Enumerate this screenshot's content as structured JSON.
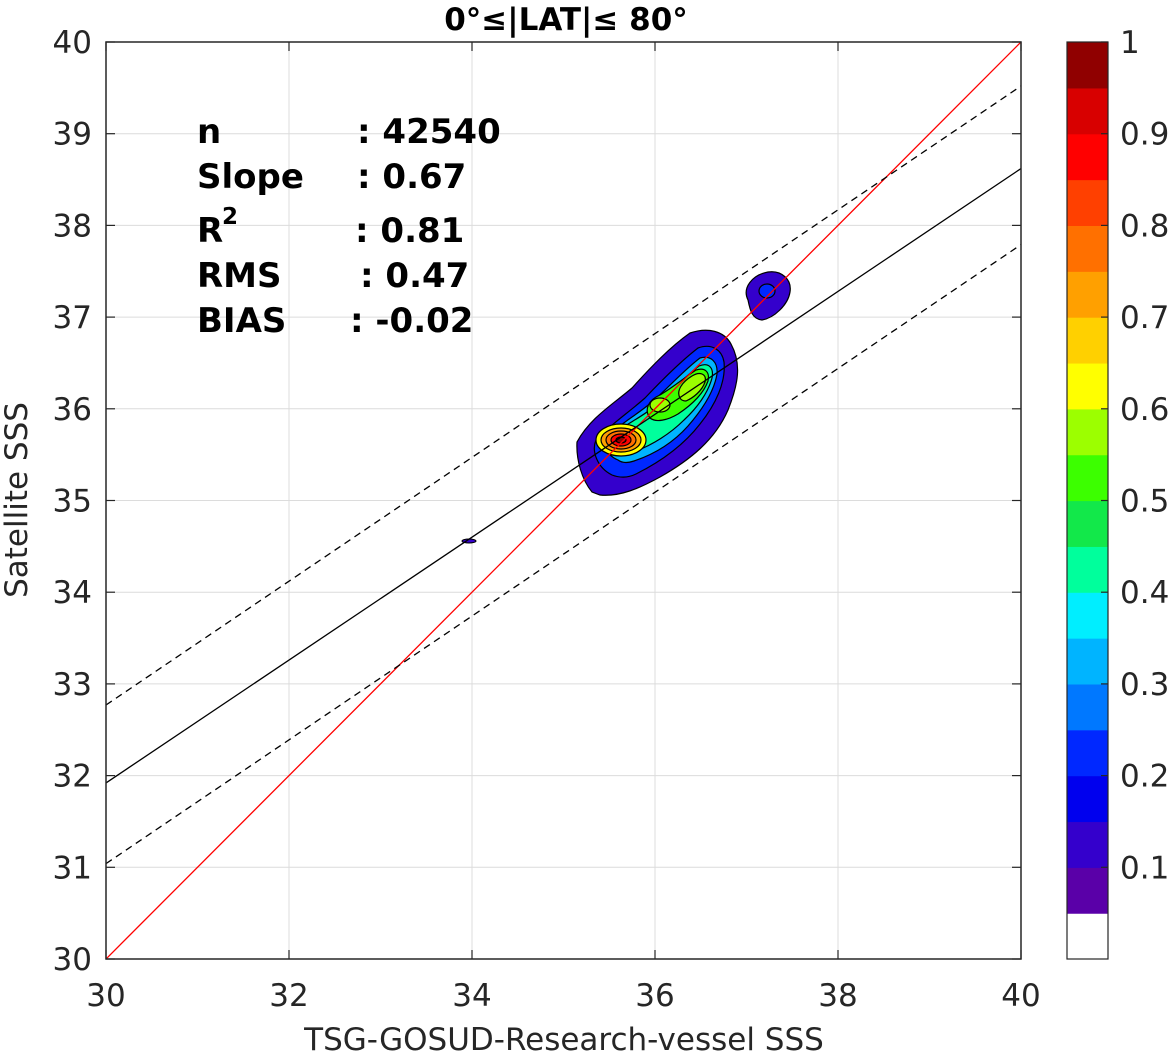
{
  "chart_data": {
    "type": "contour",
    "title": "0°≤|LAT|≤ 80°",
    "xlabel": "TSG-GOSUD-Research-vessel SSS",
    "ylabel": "Satellite SSS",
    "xlim": [
      30,
      40
    ],
    "ylim": [
      30,
      40
    ],
    "xticks": [
      "30",
      "32",
      "34",
      "36",
      "38",
      "40"
    ],
    "yticks": [
      "30",
      "31",
      "32",
      "33",
      "34",
      "35",
      "36",
      "37",
      "38",
      "39",
      "40"
    ],
    "grid": true,
    "stats": [
      {
        "label": "n",
        "value": ": 42540"
      },
      {
        "label": "Slope",
        "value": ": 0.67"
      },
      {
        "label": "R",
        "sup": "2",
        "value": ": 0.81"
      },
      {
        "label": "RMS",
        "value": ": 0.47"
      },
      {
        "label": "BIAS",
        "value": ": -0.02"
      }
    ],
    "lines": [
      {
        "name": "identity",
        "color": "#ff0000",
        "style": "solid",
        "x": [
          30,
          40
        ],
        "y": [
          30,
          40
        ]
      },
      {
        "name": "regression",
        "color": "#000000",
        "style": "solid",
        "x": [
          30,
          40
        ],
        "y": [
          31.92,
          38.62
        ]
      },
      {
        "name": "upper-bound",
        "color": "#000000",
        "style": "dashed",
        "x": [
          30,
          40
        ],
        "y": [
          32.77,
          39.52
        ]
      },
      {
        "name": "lower-bound",
        "color": "#000000",
        "style": "dashed",
        "x": [
          30,
          40
        ],
        "y": [
          31.04,
          37.79
        ]
      }
    ],
    "density_peak": {
      "x": 35.62,
      "y": 35.65
    },
    "outlier_blob": {
      "x": 37.25,
      "y": 37.25
    },
    "colorbar": {
      "range": [
        0,
        1
      ],
      "ticks": [
        "0.1",
        "0.2",
        "0.3",
        "0.4",
        "0.5",
        "0.6",
        "0.7",
        "0.8",
        "0.9",
        "1"
      ],
      "colors": [
        "#ffffff",
        "#5a00a8",
        "#3400cc",
        "#0000ee",
        "#0028ff",
        "#0078ff",
        "#00b4ff",
        "#00eeff",
        "#00ff9c",
        "#12e84a",
        "#3cff00",
        "#9cff00",
        "#ffff00",
        "#ffd000",
        "#ffa000",
        "#ff7000",
        "#ff4000",
        "#ff0000",
        "#d80000",
        "#900000"
      ]
    }
  }
}
